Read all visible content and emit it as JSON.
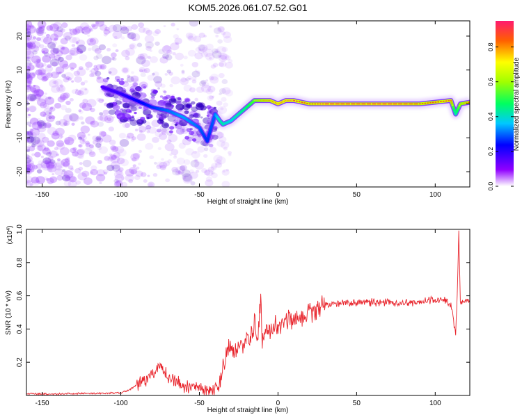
{
  "title": "KOM5.2026.061.07.52.G01",
  "chart_data": [
    {
      "type": "heatmap",
      "title": "KOM5.2026.061.07.52.G01",
      "xlabel": "Height of straight line (km)",
      "ylabel": "Frequency (Hz)",
      "xlim": [
        -160,
        122
      ],
      "ylim": [
        -24.5,
        24.5
      ],
      "xticks": [
        -150,
        -100,
        -50,
        0,
        50,
        100
      ],
      "yticks": [
        -20,
        -10,
        0,
        10,
        20
      ],
      "grid": false,
      "colorbar": {
        "label": "Normalized spectral amplitude",
        "range": [
          0,
          0.95
        ],
        "ticks": [
          0.0,
          0.2,
          0.4,
          0.6,
          0.8
        ]
      },
      "ridge": {
        "description": "peak frequency (Hz) vs height (km)",
        "x": [
          -112,
          -100,
          -90,
          -80,
          -70,
          -60,
          -50,
          -45,
          -40,
          -37,
          -35,
          -30,
          -25,
          -20,
          -15,
          -10,
          -5,
          0,
          5,
          10,
          20,
          30,
          50,
          70,
          90,
          100,
          110,
          113,
          116,
          122
        ],
        "y": [
          5,
          3,
          1,
          -1,
          -2,
          -4,
          -7,
          -11,
          -3,
          -5,
          -6,
          -5,
          -3,
          -1,
          1,
          1,
          1,
          0,
          1,
          1,
          0,
          0,
          0,
          0,
          0,
          0.5,
          1,
          -3,
          0,
          0.5
        ],
        "amplitude": [
          0.2,
          0.25,
          0.3,
          0.35,
          0.4,
          0.45,
          0.4,
          0.35,
          0.4,
          0.55,
          0.55,
          0.5,
          0.55,
          0.6,
          0.7,
          0.8,
          0.85,
          0.9,
          0.9,
          0.9,
          0.85,
          0.9,
          0.88,
          0.9,
          0.85,
          0.85,
          0.88,
          0.55,
          0.75,
          0.85
        ]
      }
    },
    {
      "type": "line",
      "xlabel": "Height of straight line (km)",
      "ylabel": "SNR (10 * v/v)",
      "y_multiplier": "(x10^4)",
      "y_multiplier_base": "(x10",
      "y_multiplier_exp": "4",
      "y_multiplier_close": ")",
      "xlim": [
        -160,
        122
      ],
      "ylim": [
        0,
        1.0
      ],
      "xticks": [
        -150,
        -100,
        -50,
        0,
        50,
        100
      ],
      "yticks": [
        0.2,
        0.4,
        0.6,
        0.8,
        1.0
      ],
      "grid": false,
      "series": [
        {
          "name": "SNR",
          "color": "#e8222a",
          "x": [
            -160,
            -140,
            -120,
            -100,
            -95,
            -90,
            -85,
            -80,
            -78,
            -75,
            -73,
            -70,
            -65,
            -60,
            -55,
            -50,
            -45,
            -40,
            -37,
            -35,
            -33,
            -30,
            -28,
            -25,
            -22,
            -20,
            -18,
            -15,
            -13,
            -11,
            -10,
            -8,
            -5,
            -2,
            0,
            5,
            10,
            15,
            20,
            25,
            30,
            35,
            40,
            50,
            60,
            70,
            80,
            90,
            95,
            100,
            103,
            106,
            108,
            110,
            111,
            112,
            113,
            114,
            115,
            116,
            118,
            120,
            122
          ],
          "y": [
            0.01,
            0.01,
            0.012,
            0.015,
            0.03,
            0.06,
            0.09,
            0.12,
            0.15,
            0.17,
            0.14,
            0.12,
            0.08,
            0.06,
            0.05,
            0.04,
            0.03,
            0.03,
            0.1,
            0.18,
            0.25,
            0.3,
            0.22,
            0.32,
            0.28,
            0.38,
            0.3,
            0.45,
            0.35,
            0.6,
            0.3,
            0.4,
            0.38,
            0.43,
            0.4,
            0.45,
            0.47,
            0.47,
            0.5,
            0.52,
            0.54,
            0.55,
            0.56,
            0.56,
            0.56,
            0.56,
            0.56,
            0.56,
            0.57,
            0.58,
            0.57,
            0.58,
            0.56,
            0.55,
            0.5,
            0.42,
            0.37,
            0.6,
            0.98,
            0.55,
            0.57,
            0.57,
            0.57
          ]
        }
      ]
    }
  ]
}
